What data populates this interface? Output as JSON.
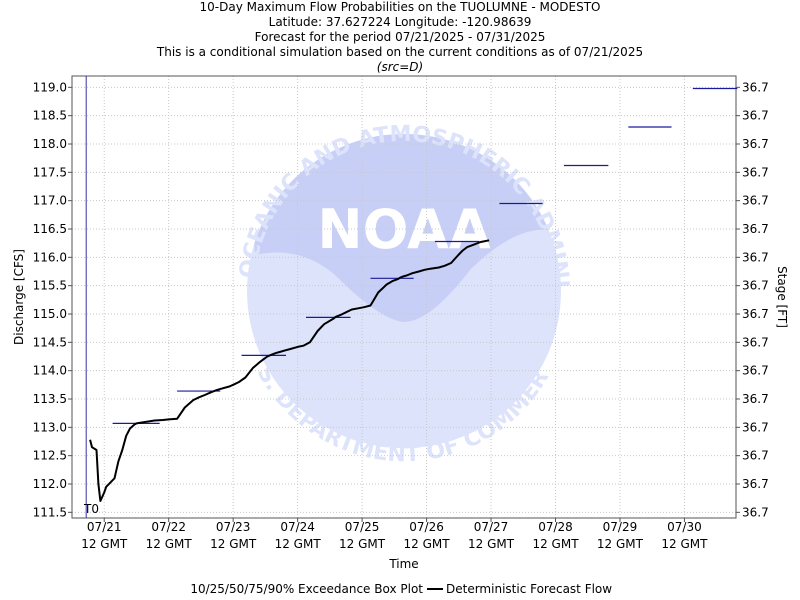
{
  "header": {
    "title": "10-Day Maximum Flow Probabilities on the TUOLUMNE - MODESTO",
    "location": "Latitude: 37.627224 Longitude: -120.98639",
    "period": "Forecast for the period 07/21/2025 - 07/31/2025",
    "note": "This is a conditional simulation based on the current conditions as of 07/21/2025",
    "source": "(src=D)"
  },
  "watermark": {
    "logo_text": "NOAA",
    "ring_top": "NATIONAL OCEANIC AND ATMOSPHERIC ADMINISTRATION",
    "ring_bottom": "U.S. DEPARTMENT OF COMMERCE"
  },
  "chart_data": {
    "type": "line",
    "xlabel": "Time",
    "ylabel": "Discharge [CFS]",
    "y2label": "Stage [FT]",
    "ylim": [
      111.4,
      119.2
    ],
    "yticks": [
      111.5,
      112.0,
      112.5,
      113.0,
      113.5,
      114.0,
      114.5,
      115.0,
      115.5,
      116.0,
      116.5,
      117.0,
      117.5,
      118.0,
      118.5,
      119.0
    ],
    "ytick_labels": [
      "111.5",
      "112.0",
      "112.5",
      "113.0",
      "113.5",
      "114.0",
      "114.5",
      "115.0",
      "115.5",
      "116.0",
      "116.5",
      "117.0",
      "117.5",
      "118.0",
      "118.5",
      "119.0"
    ],
    "y2tick_labels": [
      "36.7",
      "36.7",
      "36.7",
      "36.7",
      "36.7",
      "36.7",
      "36.7",
      "36.7",
      "36.7",
      "36.7",
      "36.7",
      "36.7",
      "36.7",
      "36.7",
      "36.7",
      "36.7"
    ],
    "xlim": [
      -0.5,
      9.8
    ],
    "xticks": [
      0,
      1,
      2,
      3,
      4,
      5,
      6,
      7,
      8,
      9
    ],
    "xtick_labels_top": [
      "07/21",
      "07/22",
      "07/23",
      "07/24",
      "07/25",
      "07/26",
      "07/27",
      "07/28",
      "07/29",
      "07/30"
    ],
    "xtick_labels_bottom": [
      "12 GMT",
      "12 GMT",
      "12 GMT",
      "12 GMT",
      "12 GMT",
      "12 GMT",
      "12 GMT",
      "12 GMT",
      "12 GMT",
      "12 GMT"
    ],
    "t0_label": "T0",
    "t0_x": -0.28,
    "box_plot": {
      "name": "10/25/50/75/90% Exceedance Box Plot",
      "color": "#1a1aa0",
      "levels": [
        {
          "x0": 0.13,
          "x1": 0.86,
          "y": 113.07
        },
        {
          "x0": 1.13,
          "x1": 1.8,
          "y": 113.64
        },
        {
          "x0": 2.13,
          "x1": 2.82,
          "y": 114.27
        },
        {
          "x0": 3.13,
          "x1": 3.82,
          "y": 114.94
        },
        {
          "x0": 4.13,
          "x1": 4.8,
          "y": 115.63
        },
        {
          "x0": 5.13,
          "x1": 5.82,
          "y": 116.28
        },
        {
          "x0": 6.13,
          "x1": 6.8,
          "y": 116.95
        },
        {
          "x0": 7.13,
          "x1": 7.82,
          "y": 117.62
        },
        {
          "x0": 8.13,
          "x1": 8.8,
          "y": 118.3
        },
        {
          "x0": 9.13,
          "x1": 9.82,
          "y": 118.98
        }
      ]
    },
    "series": [
      {
        "name": "Deterministic Forecast Flow",
        "color": "#000000",
        "x": [
          -0.22,
          -0.19,
          -0.12,
          -0.09,
          -0.06,
          0.0,
          0.03,
          0.16,
          0.22,
          0.28,
          0.34,
          0.4,
          0.47,
          0.5,
          0.56,
          0.66,
          0.78,
          0.91,
          1.0,
          1.13,
          1.25,
          1.38,
          1.47,
          1.56,
          1.66,
          1.75,
          1.81,
          1.94,
          2.0,
          2.09,
          2.19,
          2.31,
          2.41,
          2.47,
          2.53,
          2.59,
          2.66,
          2.72,
          2.81,
          2.88,
          3.0,
          3.09,
          3.19,
          3.31,
          3.41,
          3.56,
          3.59,
          3.66,
          3.75,
          3.84,
          3.94,
          4.03,
          4.13,
          4.25,
          4.38,
          4.47,
          4.56,
          4.59,
          4.63,
          4.69,
          4.78,
          4.88,
          4.97,
          5.06,
          5.19,
          5.28,
          5.38,
          5.5,
          5.56,
          5.63,
          5.72,
          5.84,
          5.97
        ],
        "y": [
          112.78,
          112.65,
          112.6,
          112.0,
          111.7,
          111.85,
          111.95,
          112.1,
          112.4,
          112.6,
          112.85,
          112.98,
          113.05,
          113.07,
          113.08,
          113.1,
          113.12,
          113.13,
          113.14,
          113.15,
          113.35,
          113.48,
          113.53,
          113.57,
          113.62,
          113.66,
          113.68,
          113.72,
          113.75,
          113.8,
          113.88,
          114.05,
          114.15,
          114.2,
          114.25,
          114.28,
          114.31,
          114.33,
          114.36,
          114.38,
          114.42,
          114.44,
          114.5,
          114.7,
          114.82,
          114.92,
          114.95,
          114.98,
          115.03,
          115.08,
          115.1,
          115.12,
          115.15,
          115.38,
          115.52,
          115.58,
          115.62,
          115.64,
          115.66,
          115.68,
          115.72,
          115.75,
          115.78,
          115.8,
          115.82,
          115.85,
          115.9,
          116.05,
          116.12,
          116.18,
          116.22,
          116.27,
          116.3
        ]
      }
    ]
  },
  "legend": {
    "box_label": "10/25/50/75/90% Exceedance Box Plot",
    "line_label": "Deterministic Forecast Flow"
  }
}
